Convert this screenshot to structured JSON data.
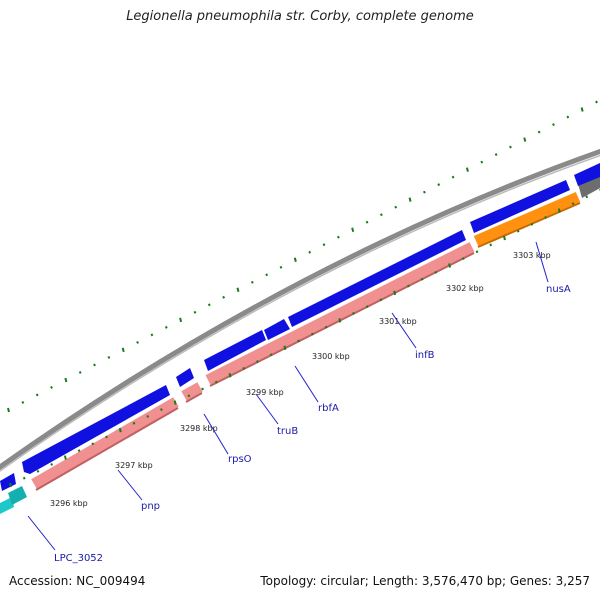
{
  "title": "Legionella pneumophila str. Corby, complete genome",
  "footer": {
    "accession": "Accession: NC_009494",
    "summary": "Topology: circular; Length: 3,576,470 bp; Genes: 3,257"
  },
  "colors": {
    "forward_cds": "#1010e0",
    "reverse_gene": "#f09090",
    "rrna": "#ff9010",
    "cds_other": "#1fc8c8",
    "backbone": "#888888",
    "gc_skew_ticks": "#1b7a1b",
    "gene_label": "#1a1aa8"
  },
  "ticks": [
    {
      "label": "3296 kbp"
    },
    {
      "label": "3297 kbp"
    },
    {
      "label": "3298 kbp"
    },
    {
      "label": "3299 kbp"
    },
    {
      "label": "3300 kbp"
    },
    {
      "label": "3301 kbp"
    },
    {
      "label": "3302 kbp"
    },
    {
      "label": "3303 kbp"
    }
  ],
  "genes": [
    {
      "name": "LPC_3052"
    },
    {
      "name": "pnp"
    },
    {
      "name": "rpsO"
    },
    {
      "name": "truB"
    },
    {
      "name": "rbfA"
    },
    {
      "name": "infB"
    },
    {
      "name": "nusA"
    }
  ]
}
